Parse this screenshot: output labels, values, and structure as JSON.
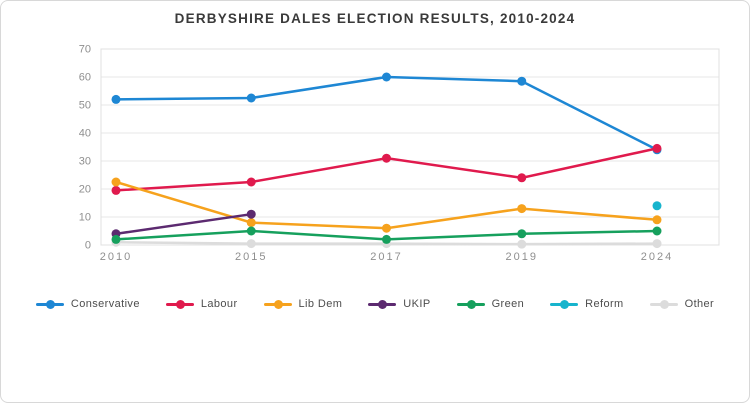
{
  "title": "DERBYSHIRE DALES ELECTION RESULTS, 2010-2024",
  "chart_data": {
    "type": "line",
    "title": "DERBYSHIRE DALES ELECTION RESULTS, 2010-2024",
    "categories": [
      "2010",
      "2015",
      "2017",
      "2019",
      "2024"
    ],
    "series": [
      {
        "name": "Other",
        "color": "#dcdcdc",
        "values": [
          1,
          0.5,
          0.5,
          0.3,
          0.5
        ]
      },
      {
        "name": "Conservative",
        "color": "#1e87d4",
        "values": [
          52,
          52.5,
          60,
          58.5,
          34
        ]
      },
      {
        "name": "Labour",
        "color": "#e01a4d",
        "values": [
          19.5,
          22.5,
          31,
          24,
          34.5
        ]
      },
      {
        "name": "Lib Dem",
        "color": "#f6a21d",
        "values": [
          22.5,
          8,
          6,
          13,
          9
        ]
      },
      {
        "name": "UKIP",
        "color": "#5c2a70",
        "values": [
          4,
          11,
          null,
          null,
          null
        ]
      },
      {
        "name": "Green",
        "color": "#16a05d",
        "values": [
          2,
          5,
          2,
          4,
          5
        ]
      },
      {
        "name": "Reform",
        "color": "#17b4cd",
        "values": [
          null,
          null,
          null,
          null,
          14
        ]
      }
    ],
    "legend_order": [
      "Conservative",
      "Labour",
      "Lib Dem",
      "UKIP",
      "Green",
      "Reform",
      "Other"
    ],
    "legend_position": "bottom",
    "xlabel": "",
    "ylabel": "",
    "ylim": [
      0,
      70
    ],
    "ytick_step": 10,
    "grid": true,
    "colors": {
      "gridline": "#e7e7e7",
      "plot_border": "#e0e0e0",
      "tick_label": "#8f8f8f",
      "title": "#3a3a3a",
      "legend_text": "#4d4d4d"
    }
  }
}
